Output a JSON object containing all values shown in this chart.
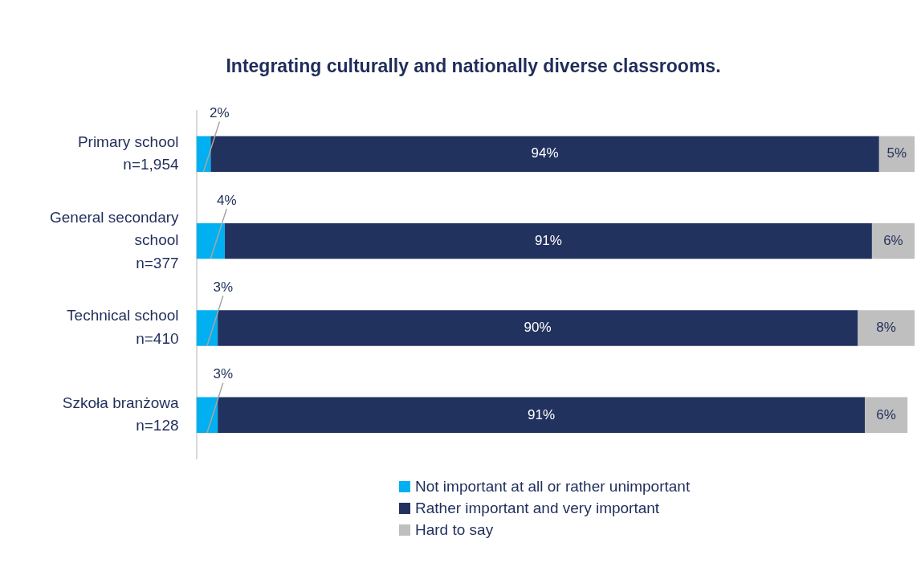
{
  "chart_data": {
    "type": "bar",
    "orientation": "horizontal",
    "stacked": true,
    "title": "Integrating culturally and nationally diverse classrooms.",
    "categories": [
      "Primary school\nn=1,954",
      "General secondary\nschool\nn=377",
      "Technical school\nn=410",
      "Szkoła branżowa\nn=128"
    ],
    "series": [
      {
        "name": "Not important at all or rather unimportant",
        "color": "#00b0f0",
        "values": [
          2,
          4,
          3,
          3
        ],
        "value_labels": [
          "2%",
          "4%",
          "3%",
          "3%"
        ]
      },
      {
        "name": "Rather important and very important",
        "color": "#22325f",
        "values": [
          94,
          91,
          90,
          91
        ],
        "value_labels": [
          "94%",
          "91%",
          "90%",
          "91%"
        ]
      },
      {
        "name": "Hard to say",
        "color": "#bfbfbf",
        "values": [
          5,
          6,
          8,
          6
        ],
        "value_labels": [
          "5%",
          "6%",
          "8%",
          "6%"
        ]
      }
    ],
    "legend": "bottom",
    "grid": false,
    "tick_labels": "y"
  }
}
